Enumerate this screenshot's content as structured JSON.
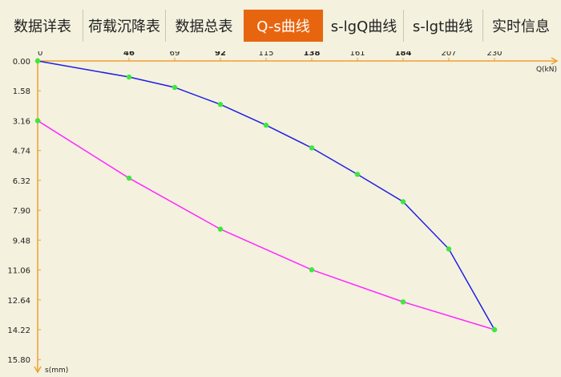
{
  "tabs": [
    {
      "label": "数据详表"
    },
    {
      "label": "荷载沉降表"
    },
    {
      "label": "数据总表"
    },
    {
      "label": "Q-s曲线"
    },
    {
      "label": "s-lgQ曲线"
    },
    {
      "label": "s-lgt曲线"
    },
    {
      "label": "实时信息"
    }
  ],
  "active_tab": 3,
  "colors": {
    "background": "#f4f1de",
    "active_tab": "#e8650f",
    "axis": "#f0a030",
    "loading_curve": "#1e1ee6",
    "unloading_curve": "#ff28ff",
    "points": "#3ce83c"
  },
  "chart_data": {
    "type": "line",
    "xlabel": "Q(kN)",
    "ylabel": "s(mm)",
    "xlim": [
      0,
      276
    ],
    "ylim": [
      0,
      15.8
    ],
    "y_inverted": true,
    "x_axis_position": "top",
    "x_ticks": [
      "0",
      "46",
      "69",
      "92",
      "115",
      "138",
      "161",
      "184",
      "207",
      "230"
    ],
    "y_ticks": [
      "0.00",
      "1.58",
      "3.16",
      "4.74",
      "6.32",
      "7.90",
      "9.48",
      "11.06",
      "12.64",
      "14.22",
      "15.80"
    ],
    "series": [
      {
        "x": [
          0,
          46,
          69,
          92,
          115,
          138,
          161,
          184,
          207,
          230
        ],
        "y": [
          0.0,
          0.85,
          1.4,
          2.3,
          3.4,
          4.6,
          6.0,
          7.45,
          9.95,
          14.22
        ]
      },
      {
        "x": [
          0,
          46,
          92,
          138,
          184,
          230
        ],
        "y": [
          3.16,
          6.2,
          8.9,
          11.05,
          12.75,
          14.22
        ]
      }
    ]
  }
}
